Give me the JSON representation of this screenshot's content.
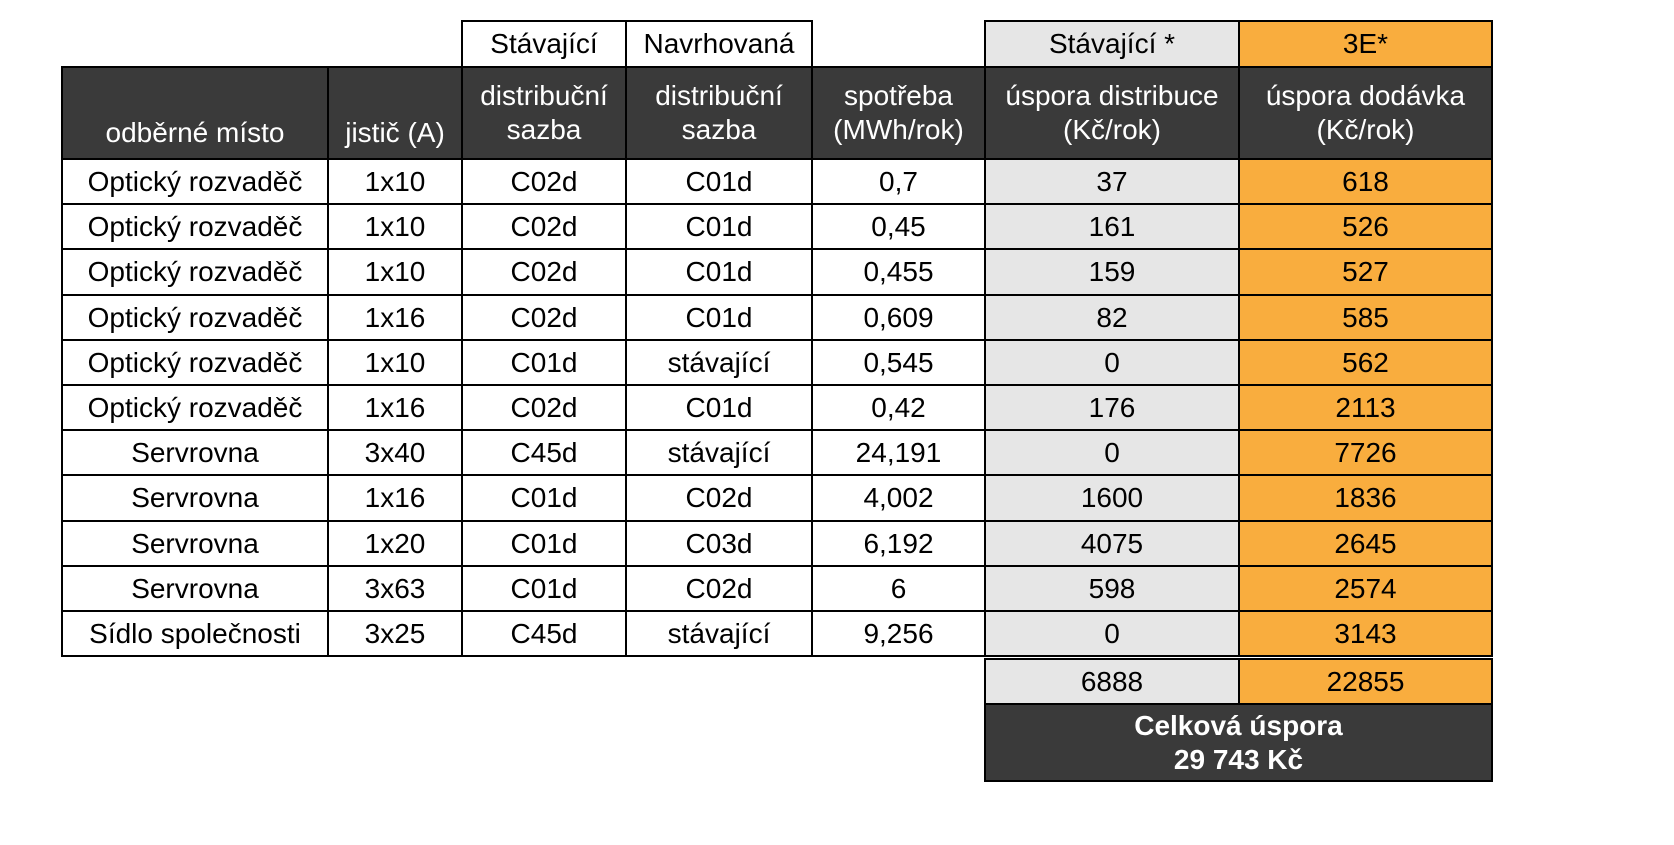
{
  "top_headers": {
    "current": "Stávající",
    "proposed": "Navrhovaná",
    "current_star": "Stávající *",
    "three_e": "3E*"
  },
  "columns": {
    "place": "odběrné místo",
    "breaker": "jistič (A)",
    "dist_current_line1": "distribuční",
    "dist_current_line2": "sazba",
    "dist_proposed_line1": "distribuční",
    "dist_proposed_line2": "sazba",
    "consumption_line1": "spotřeba",
    "consumption_line2": "(MWh/rok)",
    "saving_dist_line1": "úspora distribuce",
    "saving_dist_line2": "(Kč/rok)",
    "saving_supply_line1": "úspora dodávka",
    "saving_supply_line2": "(Kč/rok)"
  },
  "rows": [
    {
      "place": "Optický rozvaděč",
      "breaker": "1x10",
      "current": "C02d",
      "proposed": "C01d",
      "consumption": "0,7",
      "saving_dist": "37",
      "saving_supply": "618"
    },
    {
      "place": "Optický rozvaděč",
      "breaker": "1x10",
      "current": "C02d",
      "proposed": "C01d",
      "consumption": "0,45",
      "saving_dist": "161",
      "saving_supply": "526"
    },
    {
      "place": "Optický rozvaděč",
      "breaker": "1x10",
      "current": "C02d",
      "proposed": "C01d",
      "consumption": "0,455",
      "saving_dist": "159",
      "saving_supply": "527"
    },
    {
      "place": "Optický rozvaděč",
      "breaker": "1x16",
      "current": "C02d",
      "proposed": "C01d",
      "consumption": "0,609",
      "saving_dist": "82",
      "saving_supply": "585"
    },
    {
      "place": "Optický rozvaděč",
      "breaker": "1x10",
      "current": "C01d",
      "proposed": "stávající",
      "consumption": "0,545",
      "saving_dist": "0",
      "saving_supply": "562"
    },
    {
      "place": "Optický rozvaděč",
      "breaker": "1x16",
      "current": "C02d",
      "proposed": "C01d",
      "consumption": "0,42",
      "saving_dist": "176",
      "saving_supply": "2113"
    },
    {
      "place": "Servrovna",
      "breaker": "3x40",
      "current": "C45d",
      "proposed": "stávající",
      "consumption": "24,191",
      "saving_dist": "0",
      "saving_supply": "7726"
    },
    {
      "place": "Servrovna",
      "breaker": "1x16",
      "current": "C01d",
      "proposed": "C02d",
      "consumption": "4,002",
      "saving_dist": "1600",
      "saving_supply": "1836"
    },
    {
      "place": "Servrovna",
      "breaker": "1x20",
      "current": "C01d",
      "proposed": "C03d",
      "consumption": "6,192",
      "saving_dist": "4075",
      "saving_supply": "2645"
    },
    {
      "place": "Servrovna",
      "breaker": "3x63",
      "current": "C01d",
      "proposed": "C02d",
      "consumption": "6",
      "saving_dist": "598",
      "saving_supply": "2574"
    },
    {
      "place": "Sídlo společnosti",
      "breaker": "3x25",
      "current": "C45d",
      "proposed": "stávající",
      "consumption": "9,256",
      "saving_dist": "0",
      "saving_supply": "3143"
    }
  ],
  "sums": {
    "saving_dist": "6888",
    "saving_supply": "22855"
  },
  "total": {
    "line1": "Celková úspora",
    "line2": "29 743 Kč"
  },
  "colors": {
    "header_dark": "#3a3a3a",
    "grey": "#e6e6e6",
    "orange": "#f9ad3e"
  }
}
